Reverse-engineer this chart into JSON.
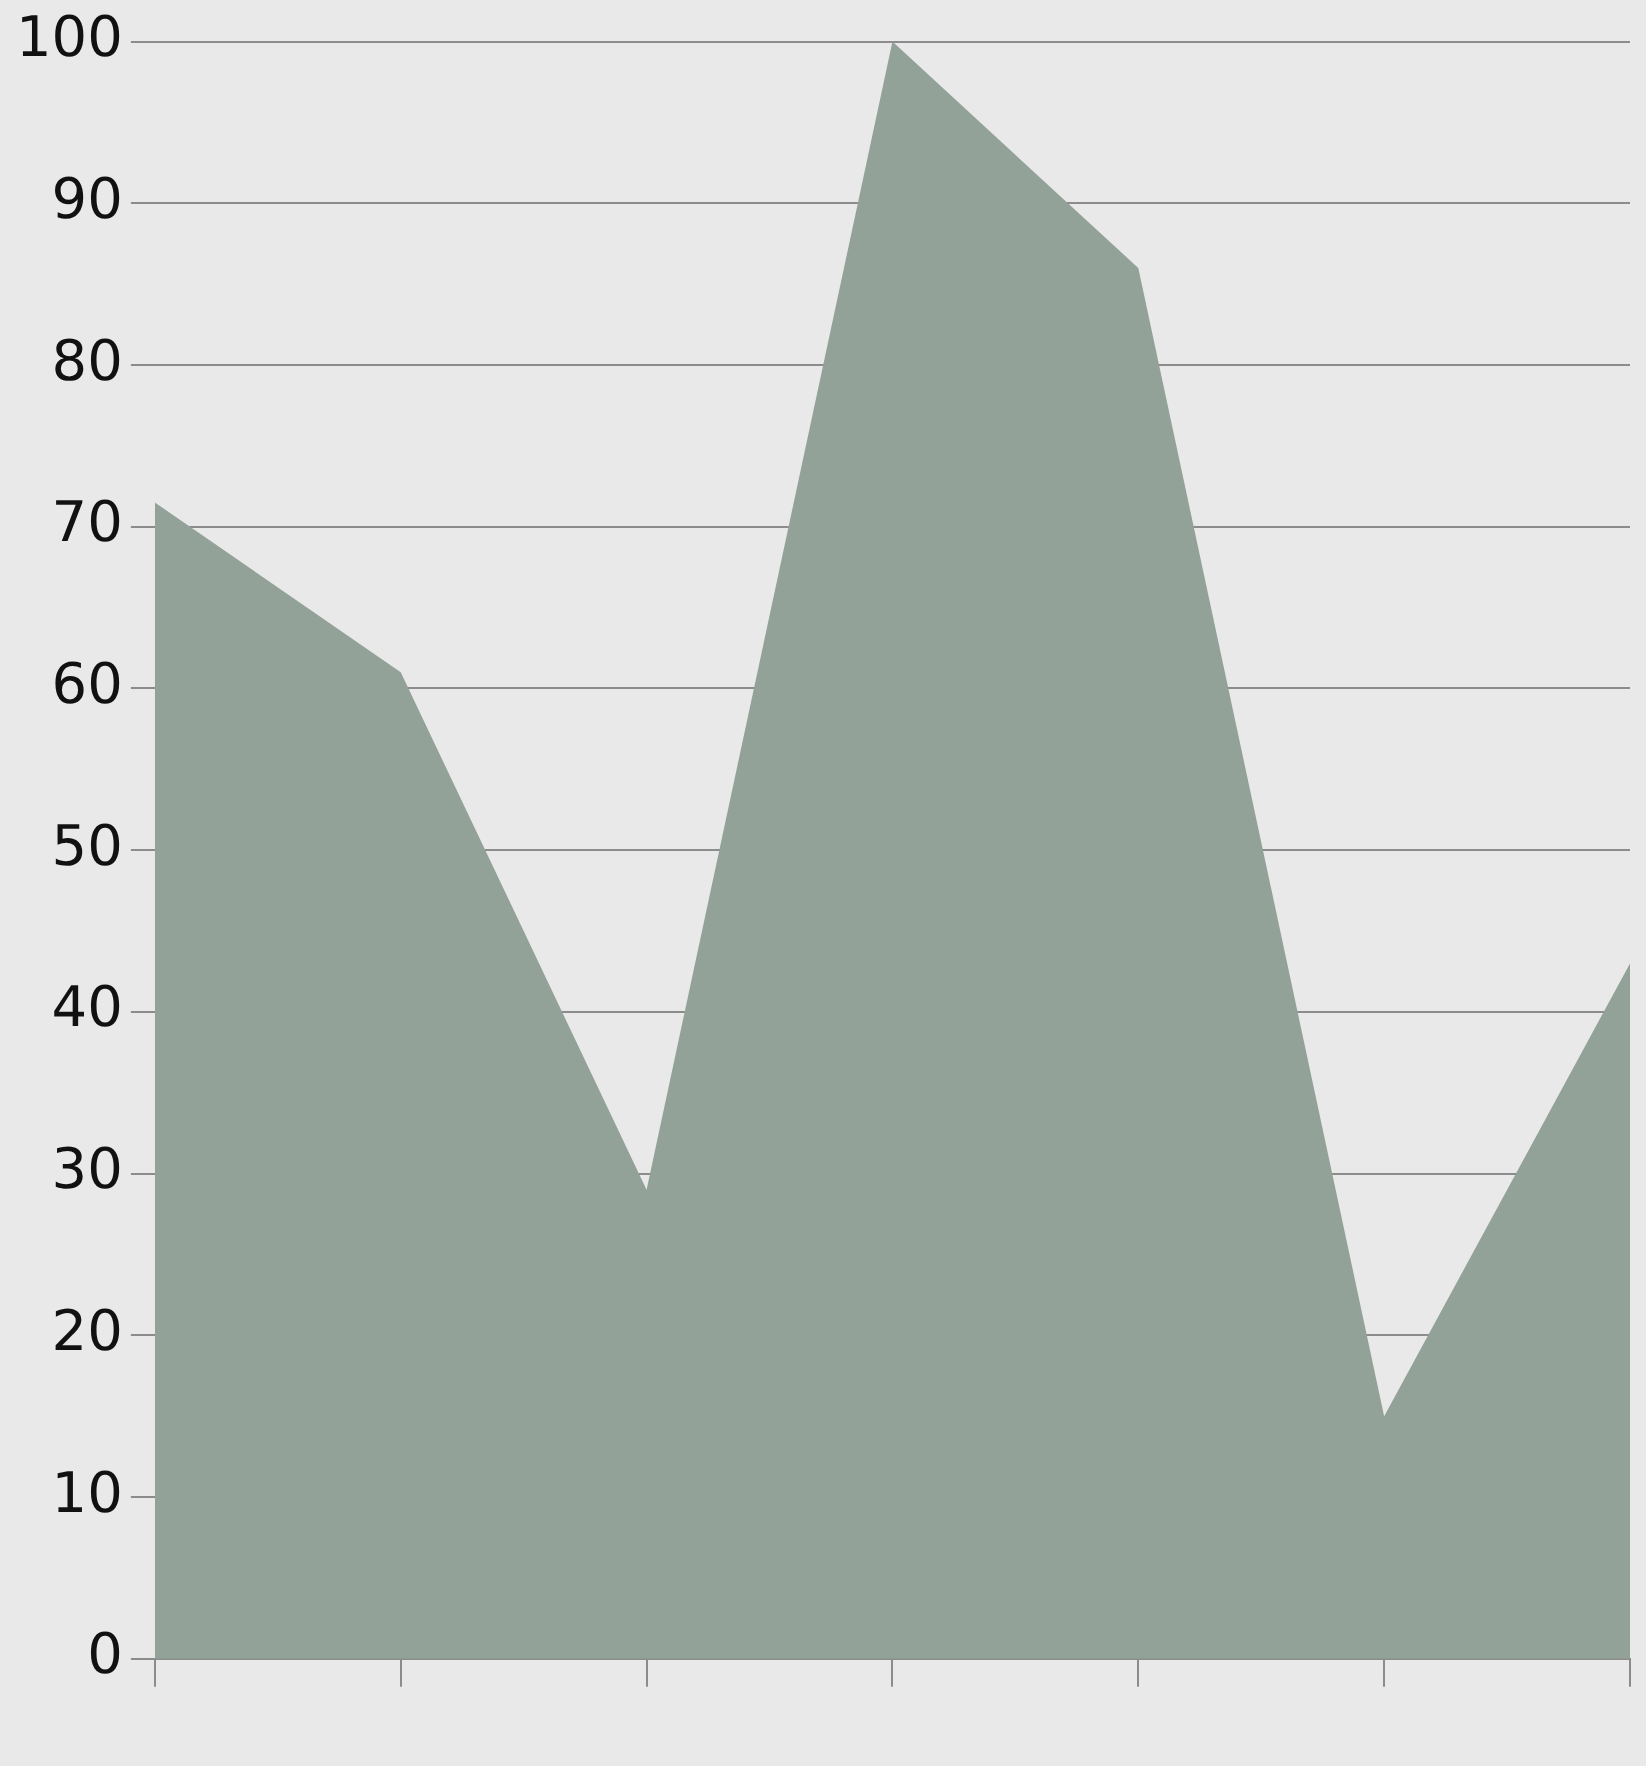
{
  "chart_data": {
    "type": "area",
    "categories": [
      null,
      null,
      null,
      null,
      null,
      null,
      null
    ],
    "series": [
      {
        "color": "#93a299",
        "values": [
          71.5,
          61,
          29,
          100,
          86,
          15,
          43
        ]
      }
    ],
    "ylim": [
      0,
      100
    ],
    "yticks": [
      0,
      10,
      20,
      30,
      40,
      50,
      60,
      70,
      80,
      90,
      100
    ],
    "grid": "y",
    "legend": false
  }
}
